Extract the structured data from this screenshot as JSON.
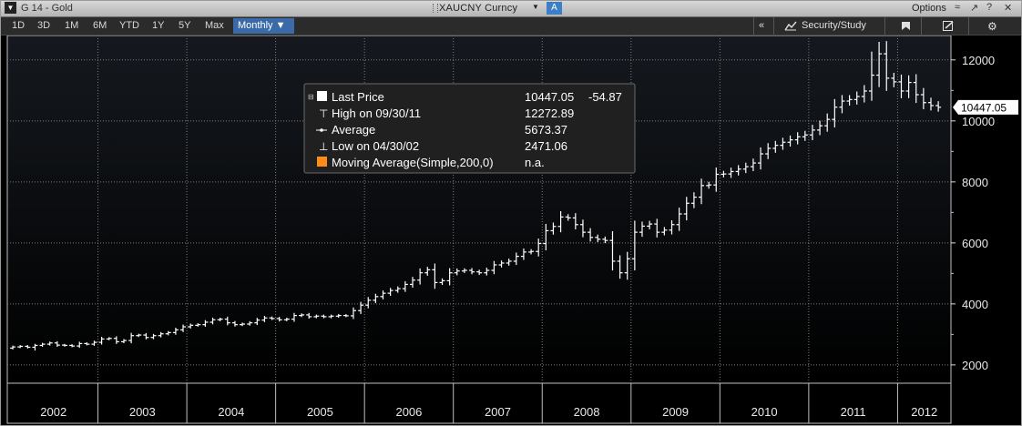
{
  "window": {
    "title": "G 14 - Gold",
    "ticker": "XAUCNY Curncy",
    "ticker_button": "A",
    "options_label": "Options",
    "controls": [
      "≈",
      "↗",
      "?",
      "✕"
    ]
  },
  "toolbar": {
    "periods": [
      "1D",
      "3D",
      "1M",
      "6M",
      "YTD",
      "1Y",
      "5Y",
      "Max"
    ],
    "frequency": "Monthly ▼",
    "collapse": "«",
    "security_study": "Security/Study"
  },
  "legend": {
    "rows": [
      {
        "marker": "square-white",
        "label": "Last Price",
        "value": "10447.05",
        "change": "-54.87"
      },
      {
        "marker": "high-icon",
        "label": "High on 09/30/11",
        "value": "12272.89",
        "change": ""
      },
      {
        "marker": "average-icon",
        "label": "Average",
        "value": "5673.37",
        "change": ""
      },
      {
        "marker": "low-icon",
        "label": "Low on 04/30/02",
        "value": "2471.06",
        "change": ""
      },
      {
        "marker": "square-orange",
        "label": "Moving Average(Simple,200,0)",
        "value": "n.a.",
        "change": ""
      }
    ]
  },
  "colors": {
    "background_top": "#15191f",
    "background_bottom": "#000000",
    "bars": "#ffffff",
    "grid": "#8a8a8a",
    "ma": "#ff8c1a"
  },
  "chart_data": {
    "type": "line",
    "style": "OHLC bar",
    "frequency": "Monthly",
    "last_value_label": "10447.05",
    "ylim": [
      1400,
      12800
    ],
    "yticks": [
      2000,
      4000,
      6000,
      8000,
      10000,
      12000
    ],
    "ytick_labels": [
      "2000",
      "4000",
      "6000",
      "8000",
      "10000",
      "12000"
    ],
    "xtick_labels": [
      "2002",
      "2003",
      "2004",
      "2005",
      "2006",
      "2007",
      "2008",
      "2009",
      "2010",
      "2011",
      "2012"
    ],
    "grid": true,
    "series": [
      {
        "name": "Last Price",
        "start": "2002-01",
        "values": [
          2590,
          2610,
          2580,
          2640,
          2680,
          2720,
          2650,
          2640,
          2620,
          2700,
          2680,
          2740,
          2850,
          2870,
          2760,
          2800,
          2960,
          2980,
          2900,
          2960,
          3020,
          3060,
          3150,
          3250,
          3300,
          3320,
          3400,
          3480,
          3500,
          3380,
          3320,
          3340,
          3380,
          3470,
          3540,
          3520,
          3480,
          3500,
          3620,
          3640,
          3580,
          3600,
          3580,
          3600,
          3620,
          3610,
          3780,
          3960,
          4120,
          4240,
          4350,
          4440,
          4500,
          4640,
          4780,
          5020,
          5120,
          4700,
          4760,
          5020,
          5080,
          5100,
          5050,
          5020,
          5100,
          5280,
          5340,
          5400,
          5560,
          5700,
          5720,
          5980,
          6400,
          6540,
          6850,
          6820,
          6600,
          6350,
          6180,
          6120,
          6080,
          5400,
          5020,
          5480,
          6350,
          6550,
          6620,
          6350,
          6420,
          6600,
          6950,
          7300,
          7500,
          7880,
          7900,
          8250,
          8260,
          8340,
          8420,
          8500,
          8620,
          8920,
          9100,
          9200,
          9300,
          9380,
          9480,
          9540,
          9700,
          9840,
          10050,
          10450,
          10650,
          10700,
          10800,
          10980,
          11500,
          12200,
          11400,
          11280,
          10980,
          11260,
          10860,
          10600,
          10502,
          10447
        ]
      },
      {
        "name": "High",
        "marker": "09/30/11",
        "value": 12272.89
      },
      {
        "name": "Average",
        "value": 5673.37
      },
      {
        "name": "Low",
        "marker": "04/30/02",
        "value": 2471.06
      }
    ]
  }
}
